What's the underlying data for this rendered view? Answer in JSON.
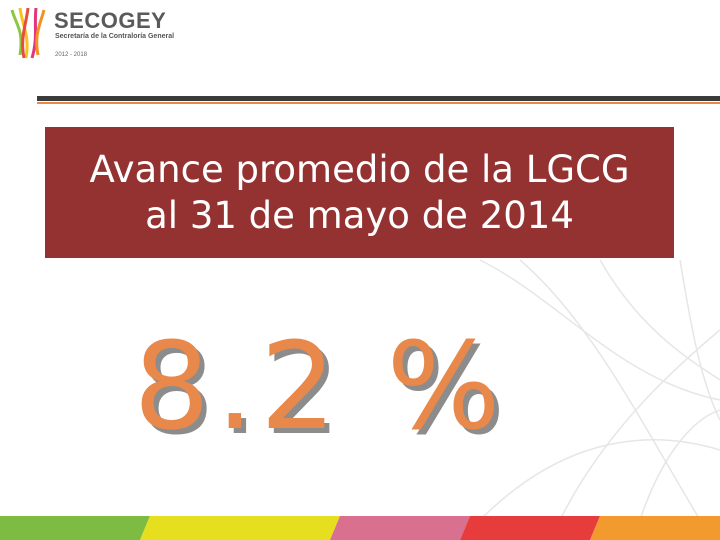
{
  "logo": {
    "name": "SECOGEY",
    "subtitle": "Secretaría de la Contraloría General",
    "period": "2012 - 2018"
  },
  "title_lines": [
    "Avance promedio de la LGCG",
    "al 31 de mayo de 2014"
  ],
  "headline": "8.2 %"
}
